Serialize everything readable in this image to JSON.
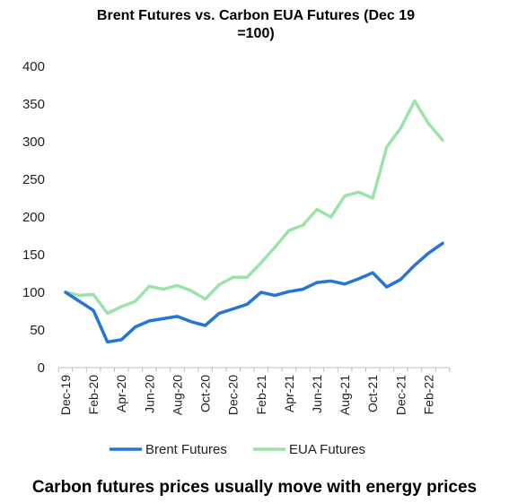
{
  "caption": "Carbon futures prices usually move with energy prices",
  "chart_data": {
    "type": "line",
    "title": "Brent Futures vs. Carbon EUA Futures (Dec 19 =100)",
    "title_lines": [
      "Brent Futures vs. Carbon EUA Futures (Dec 19",
      "=100)"
    ],
    "xlabel": "",
    "ylabel": "",
    "ylim": [
      0,
      400
    ],
    "yticks": [
      0,
      50,
      100,
      150,
      200,
      250,
      300,
      350,
      400
    ],
    "grid": false,
    "legend_position": "bottom",
    "categories": [
      "Dec-19",
      "Jan-20",
      "Feb-20",
      "Mar-20",
      "Apr-20",
      "May-20",
      "Jun-20",
      "Jul-20",
      "Aug-20",
      "Sep-20",
      "Oct-20",
      "Nov-20",
      "Dec-20",
      "Jan-21",
      "Feb-21",
      "Mar-21",
      "Apr-21",
      "May-21",
      "Jun-21",
      "Jul-21",
      "Aug-21",
      "Sep-21",
      "Oct-21",
      "Nov-21",
      "Dec-21",
      "Jan-22",
      "Feb-22",
      "Mar-22"
    ],
    "tick_labels": [
      "Dec-19",
      "Feb-20",
      "Apr-20",
      "Jun-20",
      "Aug-20",
      "Oct-20",
      "Dec-20",
      "Feb-21",
      "Apr-21",
      "Jun-21",
      "Aug-21",
      "Oct-21",
      "Dec-21",
      "Feb-22"
    ],
    "series": [
      {
        "name": "Brent Futures",
        "color": "#2475d6",
        "values": [
          100,
          88,
          76,
          34,
          37,
          54,
          62,
          65,
          68,
          61,
          56,
          72,
          78,
          84,
          100,
          96,
          101,
          104,
          113,
          115,
          111,
          118,
          126,
          107,
          117,
          136,
          152,
          165
        ]
      },
      {
        "name": "EUA Futures",
        "color": "#9be3a8",
        "values": [
          100,
          96,
          97,
          72,
          81,
          88,
          108,
          104,
          109,
          102,
          91,
          110,
          120,
          120,
          139,
          160,
          182,
          189,
          210,
          200,
          228,
          233,
          225,
          293,
          318,
          354,
          324,
          302
        ]
      }
    ]
  }
}
